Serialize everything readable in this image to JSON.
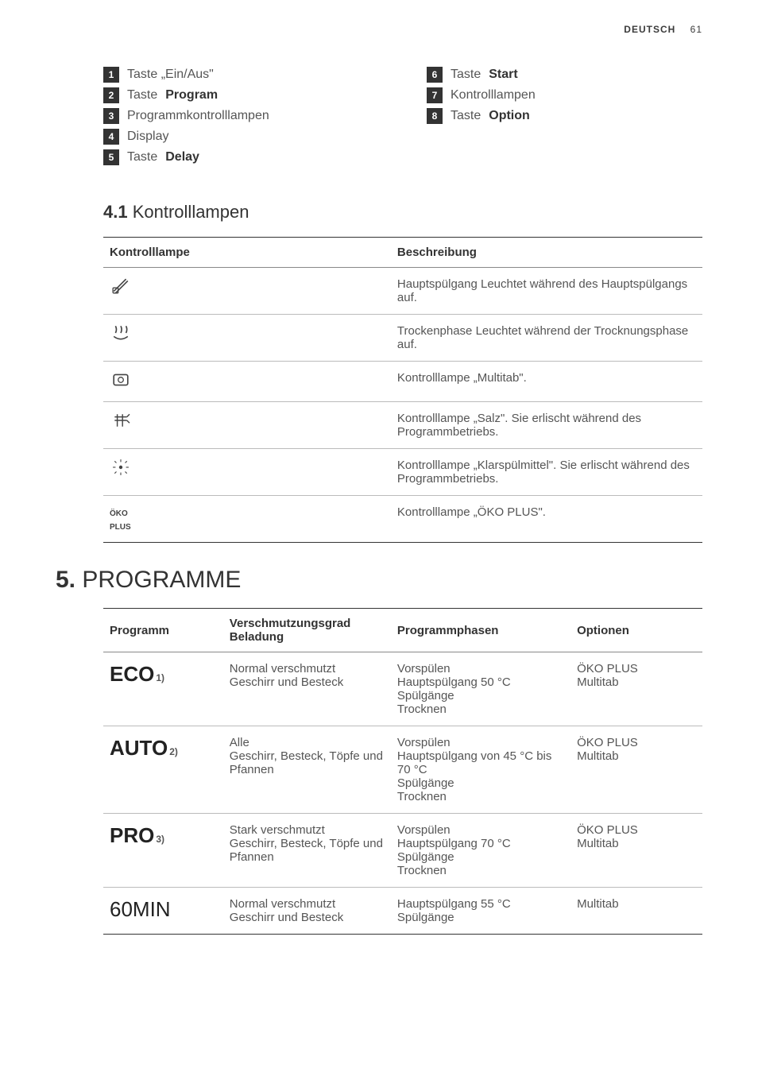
{
  "header": {
    "language": "DEUTSCH",
    "page": "61"
  },
  "legend_left": [
    {
      "n": "1",
      "text_pre": "Taste „Ein/Aus\"",
      "bold": ""
    },
    {
      "n": "2",
      "text_pre": "Taste ",
      "bold": "Program"
    },
    {
      "n": "3",
      "text_pre": "Programmkontrolllampen",
      "bold": ""
    },
    {
      "n": "4",
      "text_pre": "Display",
      "bold": ""
    },
    {
      "n": "5",
      "text_pre": "Taste ",
      "bold": "Delay"
    }
  ],
  "legend_right": [
    {
      "n": "6",
      "text_pre": "Taste ",
      "bold": "Start"
    },
    {
      "n": "7",
      "text_pre": "Kontrolllampen",
      "bold": ""
    },
    {
      "n": "8",
      "text_pre": "Taste ",
      "bold": "Option"
    }
  ],
  "section41": {
    "num": "4.1",
    "title": "Kontrolllampen"
  },
  "table1": {
    "head": {
      "c1": "Kontrolllampe",
      "c2": "Beschreibung"
    },
    "rows": [
      {
        "icon": "brush",
        "desc": "Hauptspülgang Leuchtet während des Hauptspülgangs auf."
      },
      {
        "icon": "steam",
        "desc": "Trockenphase Leuchtet während der Trock­nungsphase auf."
      },
      {
        "icon": "tabs",
        "desc": "Kontrolllampe „Multitab\"."
      },
      {
        "icon": "salt",
        "desc": "Kontrolllampe „Salz\". Sie erlischt während des Programmbetriebs."
      },
      {
        "icon": "rinse",
        "desc": "Kontrolllampe „Klarspülmittel\". Sie erlischt während des Programmbetriebs."
      },
      {
        "icon": "oko",
        "desc": "Kontrolllampe „ÖKO PLUS\"."
      }
    ]
  },
  "section5": {
    "num": "5.",
    "title": "PROGRAMME"
  },
  "table2": {
    "head": {
      "c1": "Programm",
      "c2": "Verschmutzungsgrad Beladung",
      "c3": "Programmphasen",
      "c4": "Optionen"
    },
    "rows": [
      {
        "name": "ECO",
        "sup": "1)",
        "weight": "bold",
        "soil": "Normal verschmutzt\nGeschirr und Besteck",
        "phase": "Vorspülen\nHauptspülgang 50 °C\nSpülgänge\nTrocknen",
        "opt": "ÖKO PLUS\nMultitab"
      },
      {
        "name": "AUTO",
        "sup": "2)",
        "weight": "bold",
        "soil": "Alle\nGeschirr, Besteck, Töpfe und Pfannen",
        "phase": "Vorspülen\nHauptspülgang von 45 °C bis 70 °C\nSpülgänge\nTrocknen",
        "opt": "ÖKO PLUS\nMultitab"
      },
      {
        "name": "PRO",
        "sup": "3)",
        "weight": "bold",
        "soil": "Stark verschmutzt\nGeschirr, Besteck, Töpfe und Pfannen",
        "phase": "Vorspülen\nHauptspülgang 70 °C\nSpülgänge\nTrocknen",
        "opt": "ÖKO PLUS\nMultitab"
      },
      {
        "name": "60MIN",
        "sup": "",
        "weight": "light",
        "soil": "Normal verschmutzt\nGeschirr und Besteck",
        "phase": "Hauptspülgang 55 °C\nSpülgänge",
        "opt": "Multitab"
      }
    ]
  },
  "colors": {
    "text": "#3a3a3a",
    "muted": "#555555",
    "rule_dark": "#333333",
    "rule_light": "#bbbbbb",
    "numbox_bg": "#333333"
  }
}
